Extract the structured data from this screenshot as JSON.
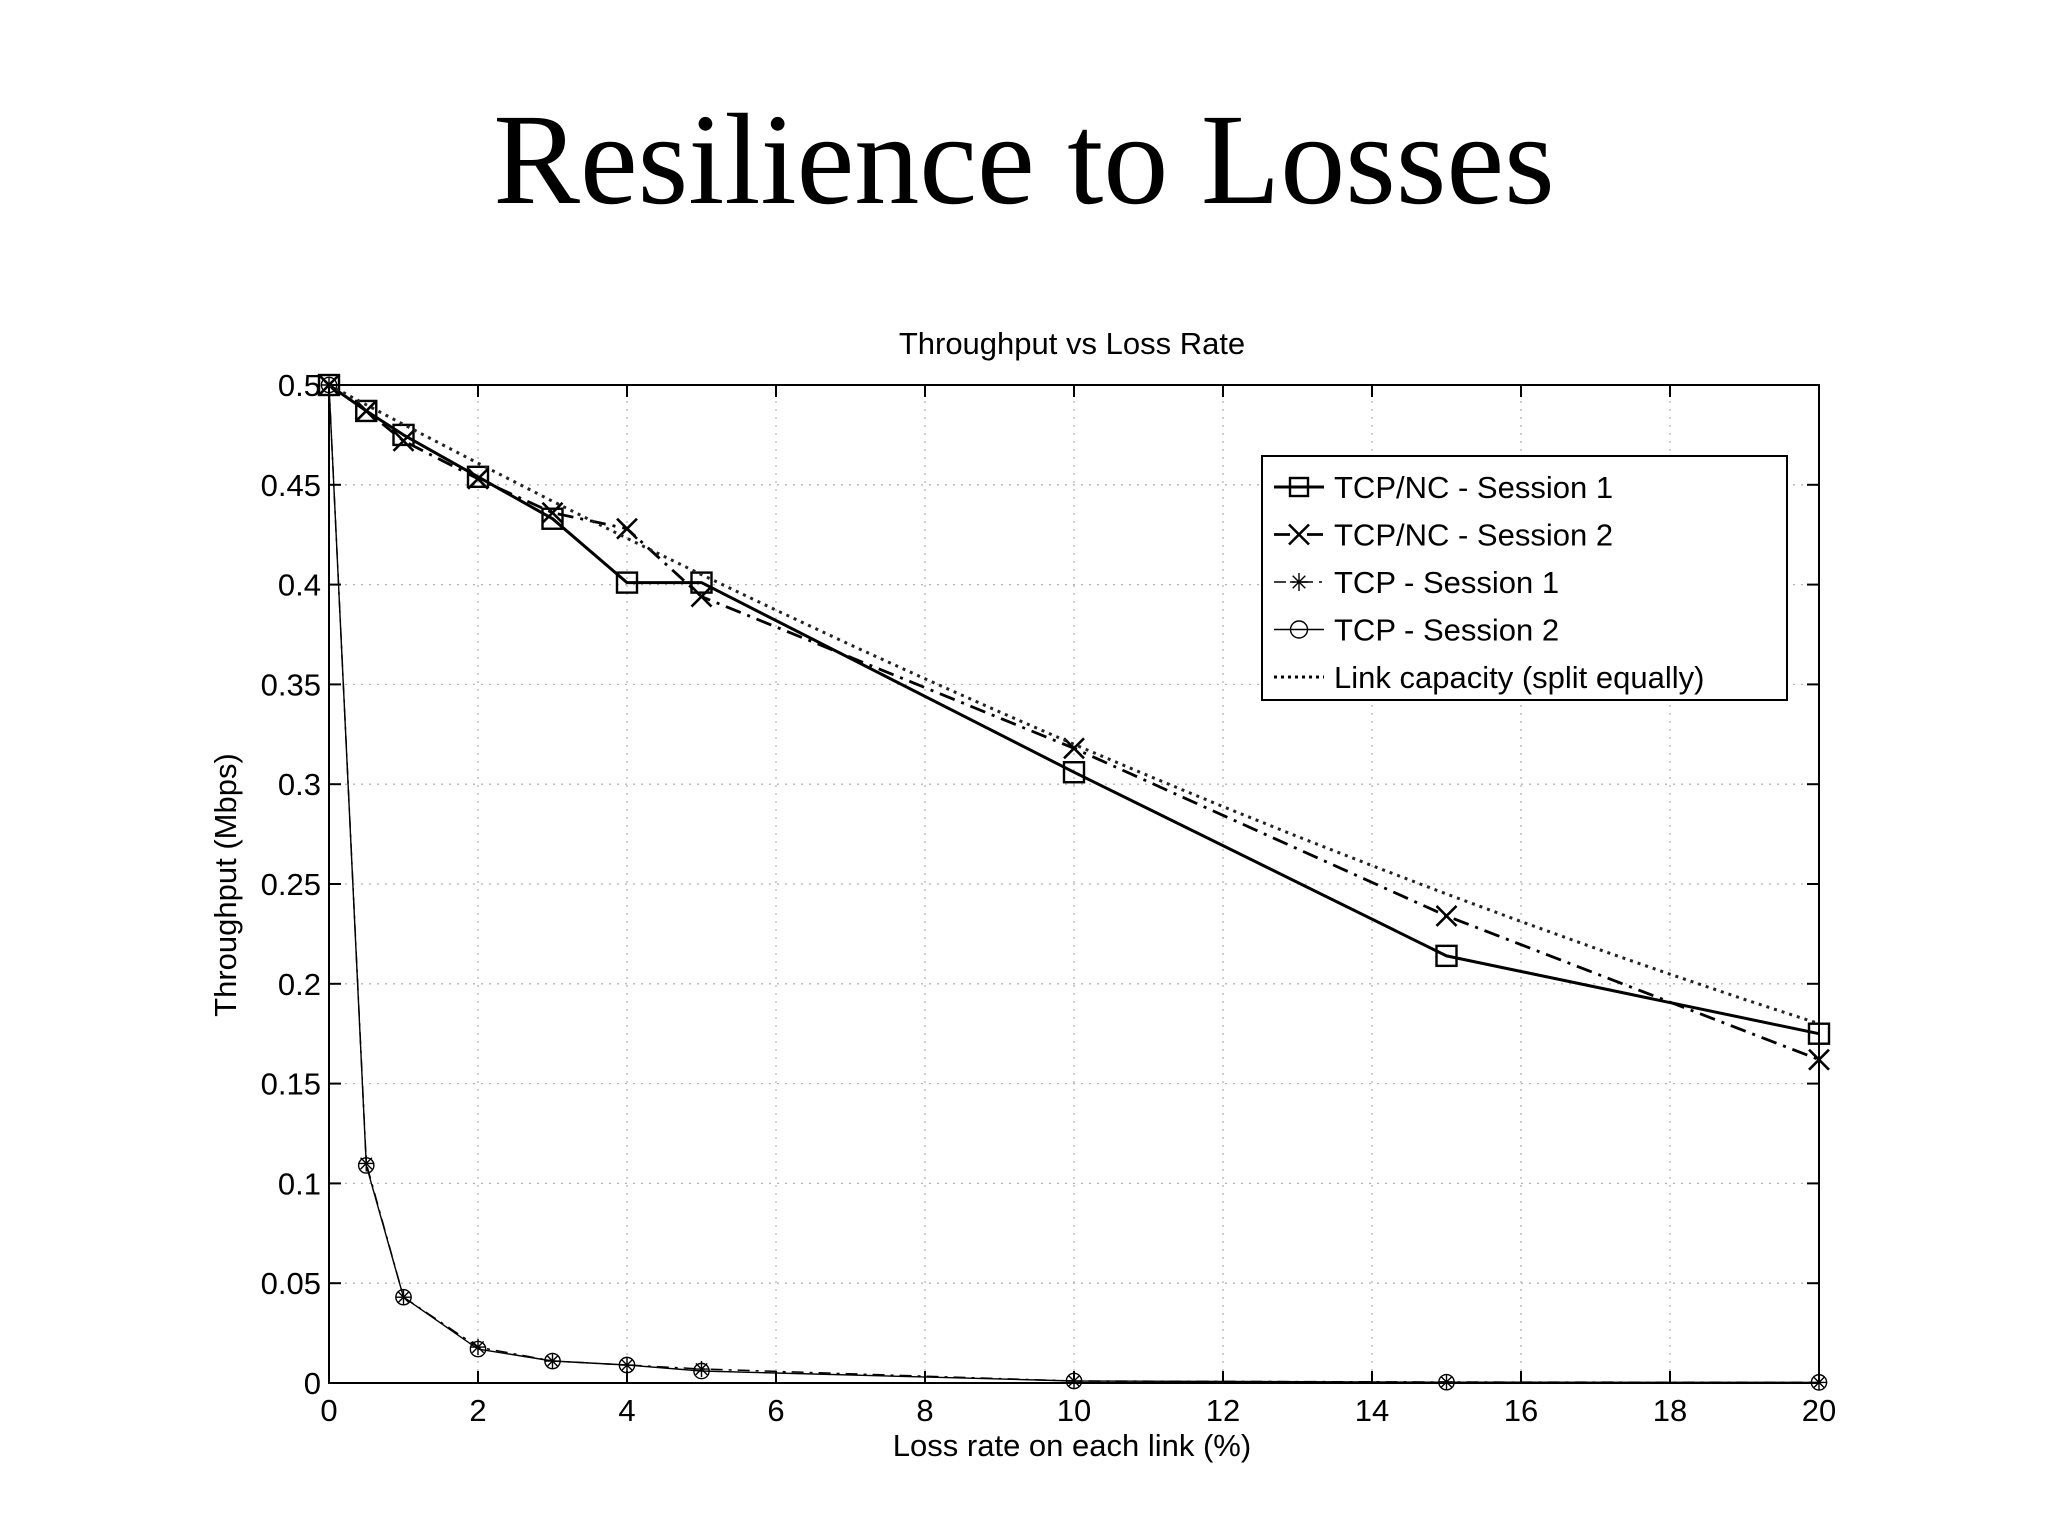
{
  "slide": {
    "title": "Resilience to Losses"
  },
  "chart_data": {
    "type": "line",
    "title": "Throughput vs Loss Rate",
    "xlabel": "Loss rate on each link (%)",
    "ylabel": "Throughput (Mbps)",
    "xlim": [
      0,
      20
    ],
    "ylim": [
      0,
      0.5
    ],
    "xticks": [
      0,
      2,
      4,
      6,
      8,
      10,
      12,
      14,
      16,
      18,
      20
    ],
    "yticks": [
      0,
      0.05,
      0.1,
      0.15,
      0.2,
      0.25,
      0.3,
      0.35,
      0.4,
      0.45,
      0.5
    ],
    "xtick_labels": [
      "0",
      "2",
      "4",
      "6",
      "8",
      "10",
      "12",
      "14",
      "16",
      "18",
      "20"
    ],
    "ytick_labels": [
      "0",
      "0.05",
      "0.1",
      "0.15",
      "0.2",
      "0.25",
      "0.3",
      "0.35",
      "0.4",
      "0.45",
      "0.5"
    ],
    "grid": true,
    "legend_position": "top-right",
    "series": [
      {
        "name": "TCP/NC - Session 1",
        "marker": "square",
        "line": "solid",
        "x": [
          0,
          0.5,
          1,
          2,
          3,
          4,
          5,
          10,
          15,
          20
        ],
        "y": [
          0.5,
          0.487,
          0.475,
          0.454,
          0.433,
          0.401,
          0.401,
          0.306,
          0.214,
          0.175
        ]
      },
      {
        "name": "TCP/NC - Session 2",
        "marker": "x",
        "line": "dashdot",
        "x": [
          0,
          0.5,
          1,
          2,
          3,
          4,
          5,
          10,
          15,
          20
        ],
        "y": [
          0.5,
          0.487,
          0.472,
          0.453,
          0.436,
          0.428,
          0.394,
          0.318,
          0.234,
          0.162
        ]
      },
      {
        "name": "TCP - Session 1",
        "marker": "star",
        "line": "dashdot-thin",
        "x": [
          0,
          0.5,
          1,
          2,
          3,
          4,
          5,
          10,
          15,
          20
        ],
        "y": [
          0.5,
          0.11,
          0.043,
          0.018,
          0.011,
          0.009,
          0.007,
          0.001,
          0.0005,
          0.0003
        ]
      },
      {
        "name": "TCP - Session 2",
        "marker": "circle",
        "line": "solid-thin",
        "x": [
          0,
          0.5,
          1,
          2,
          3,
          4,
          5,
          10,
          15,
          20
        ],
        "y": [
          0.5,
          0.109,
          0.043,
          0.017,
          0.011,
          0.009,
          0.006,
          0.001,
          0.0004,
          0.0003
        ]
      },
      {
        "name": "Link capacity (split equally)",
        "marker": "none",
        "line": "dotted",
        "x": [
          0,
          1,
          2,
          3,
          4,
          5,
          6,
          7,
          8,
          9,
          10,
          11,
          12,
          13,
          14,
          15,
          16,
          17,
          18,
          19,
          20
        ],
        "y": [
          0.5,
          0.4802,
          0.4608,
          0.4418,
          0.4232,
          0.405,
          0.3872,
          0.3698,
          0.3528,
          0.3362,
          0.32,
          0.3042,
          0.2888,
          0.2738,
          0.2592,
          0.245,
          0.2312,
          0.2178,
          0.2048,
          0.1922,
          0.18
        ]
      }
    ]
  }
}
